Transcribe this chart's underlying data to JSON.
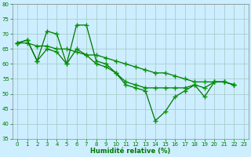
{
  "xlabel": "Humidité relative (%)",
  "background_color": "#cceeff",
  "grid_color": "#aacccc",
  "line_color": "#007700",
  "marker_color": "#009900",
  "xlim": [
    -0.5,
    23.5
  ],
  "ylim": [
    35,
    80
  ],
  "yticks": [
    35,
    40,
    45,
    50,
    55,
    60,
    65,
    70,
    75,
    80
  ],
  "xticks": [
    0,
    1,
    2,
    3,
    4,
    5,
    6,
    7,
    8,
    9,
    10,
    11,
    12,
    13,
    14,
    15,
    16,
    17,
    18,
    19,
    20,
    21,
    22,
    23
  ],
  "series1": [
    67,
    68,
    61,
    71,
    70,
    60,
    73,
    73,
    61,
    60,
    57,
    53,
    52,
    51,
    41,
    44,
    49,
    51,
    53,
    49,
    54,
    54,
    53,
    null
  ],
  "series2": [
    67,
    67,
    66,
    66,
    65,
    65,
    64,
    63,
    63,
    62,
    61,
    60,
    59,
    58,
    57,
    57,
    56,
    55,
    54,
    54,
    54,
    54,
    53,
    null
  ],
  "series3": [
    67,
    68,
    61,
    65,
    64,
    60,
    65,
    63,
    60,
    59,
    57,
    54,
    53,
    52,
    52,
    52,
    52,
    52,
    53,
    52,
    54,
    54,
    53,
    null
  ]
}
